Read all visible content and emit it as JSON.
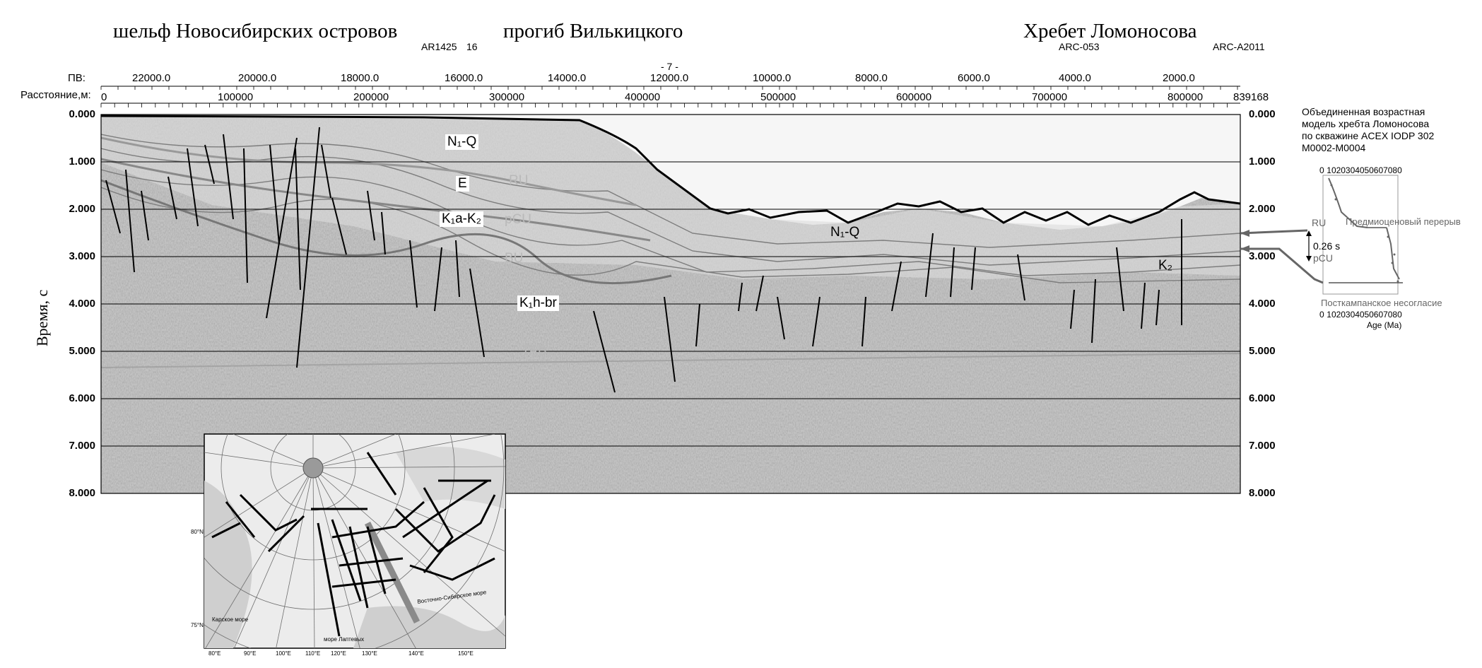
{
  "headers": {
    "regions": [
      "шельф Новосибирских островов",
      "прогиб Вилькицкого",
      "Хребет Ломоносова"
    ],
    "lines_left": "AR1425",
    "lines_left_num": "16",
    "line_center": "- 7 -",
    "line_arc053": "ARC-053",
    "line_arca2011": "ARC-A2011"
  },
  "axes": {
    "pv_label": "ПВ:",
    "pv_ticks": [
      "22000.0",
      "20000.0",
      "18000.0",
      "16000.0",
      "14000.0",
      "12000.0",
      "10000.0",
      "8000.0",
      "6000.0",
      "4000.0",
      "2000.0"
    ],
    "dist_label": "Расстояние,м:",
    "dist_ticks": [
      "0",
      "100000",
      "200000",
      "300000",
      "400000",
      "500000",
      "600000",
      "700000",
      "800000",
      "839168"
    ],
    "time_label": "Время, с",
    "time_ticks": [
      "0.000",
      "1.000",
      "2.000",
      "3.000",
      "4.000",
      "5.000",
      "6.000",
      "7.000",
      "8.000"
    ]
  },
  "horizons": {
    "n1q_left": "N₁-Q",
    "e": "E",
    "ru": "RU",
    "k1a_k2": "K₁a-K₂",
    "pcu": "pCU",
    "bu": "BU",
    "k1h_br": "K₁h-br",
    "tab": "TAB",
    "n1q_right": "N₁-Q",
    "k2": "K₂"
  },
  "age_model": {
    "title_l1": "Объединенная возрастная",
    "title_l2": "модель хребта Ломоносова",
    "title_l3": "по скважине ACEX IODP 302",
    "title_l4": "M0002-M0004",
    "ticks": [
      "0",
      "10",
      "20",
      "30",
      "40",
      "50",
      "60",
      "70",
      "80"
    ],
    "ru": "RU",
    "pcu": "pCU",
    "gap": "0.26 s",
    "hiatus": "Предмиоценовый перерыв",
    "unconformity": "Посткампанское несогласие",
    "xlabel": "Age (Ma)"
  },
  "inset_map": {
    "sea_east_siberian": "Восточно-Сибирское море",
    "sea_kara": "Карское море",
    "sea_laptev": "море Лаптевых",
    "lon_labels": [
      "80°E",
      "90°E",
      "100°E",
      "110°E",
      "120°E",
      "130°E",
      "140°E",
      "150°E"
    ],
    "lat_labels": [
      "80°N",
      "75°N"
    ]
  },
  "colors": {
    "seismic_bg": "#bdbdbd",
    "seafloor": "#000000",
    "horizon_gray": "#8c8c8c",
    "map_land": "#cfcfcf",
    "map_sea": "#ececec"
  }
}
